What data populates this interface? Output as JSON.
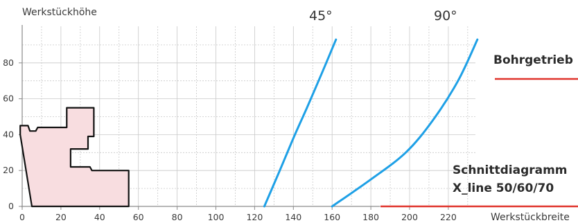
{
  "chart_data": {
    "type": "line",
    "xlabel": "Werkstückbreite",
    "ylabel": "Werkstückhöhe",
    "xlim": [
      0,
      235
    ],
    "ylim": [
      0,
      93
    ],
    "x_ticks": [
      0,
      20,
      40,
      60,
      80,
      100,
      120,
      140,
      160,
      180,
      200,
      220
    ],
    "y_ticks": [
      0,
      20,
      40,
      60,
      80
    ],
    "grid": true,
    "series": [
      {
        "name": "45°",
        "color": "#1ea0e6",
        "points": [
          [
            125,
            0
          ],
          [
            133,
            20
          ],
          [
            140,
            38
          ],
          [
            147,
            55
          ],
          [
            155,
            75
          ],
          [
            162,
            93
          ]
        ]
      },
      {
        "name": "90°",
        "color": "#1ea0e6",
        "points": [
          [
            160,
            0
          ],
          [
            180,
            15
          ],
          [
            198,
            30
          ],
          [
            212,
            48
          ],
          [
            225,
            70
          ],
          [
            235,
            93
          ]
        ]
      }
    ],
    "profile": {
      "fill": "#f8dde0",
      "stroke": "#111111",
      "points": [
        [
          -1,
          45
        ],
        [
          3,
          45
        ],
        [
          4,
          42
        ],
        [
          7,
          42
        ],
        [
          8,
          44
        ],
        [
          23,
          44
        ],
        [
          23,
          55
        ],
        [
          37,
          55
        ],
        [
          37,
          39
        ],
        [
          34,
          39
        ],
        [
          34,
          32
        ],
        [
          25,
          32
        ],
        [
          25,
          22
        ],
        [
          35,
          22
        ],
        [
          36,
          20
        ],
        [
          55,
          20
        ],
        [
          55,
          0
        ],
        [
          5,
          0
        ],
        [
          -1,
          40
        ]
      ]
    }
  },
  "annotations": {
    "bohrgetriebe": "Bohrgetrieb",
    "schnitt_line1": "Schnittdiagramm",
    "schnitt_line2": "X_line 50/60/70"
  },
  "colors": {
    "curve": "#1ea0e6",
    "accent_red": "#e0332b",
    "grid": "#c8c8c8",
    "axis": "#8a8a8a"
  }
}
